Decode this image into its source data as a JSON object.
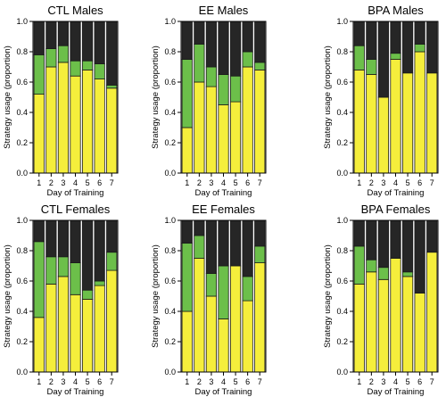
{
  "colors": {
    "yellow": "#f5ee3c",
    "green": "#6cbf4a",
    "black": "#262626"
  },
  "chart_data": [
    {
      "type": "bar",
      "stacked": true,
      "title": "CTL Males",
      "xlabel": "Day of Training",
      "ylabel": "Strategy usage (proportion)",
      "categories": [
        "1",
        "2",
        "3",
        "4",
        "5",
        "6",
        "7"
      ],
      "yticks": [
        "0.0",
        "0.2",
        "0.4",
        "0.6",
        "0.8",
        "1.0"
      ],
      "ylim": [
        0,
        1
      ],
      "series": [
        {
          "color": "yellow",
          "values": [
            0.52,
            0.7,
            0.73,
            0.64,
            0.68,
            0.62,
            0.56
          ]
        },
        {
          "color": "green",
          "values": [
            0.26,
            0.12,
            0.11,
            0.1,
            0.06,
            0.1,
            0.02
          ]
        },
        {
          "color": "black",
          "values": [
            0.22,
            0.18,
            0.16,
            0.26,
            0.26,
            0.28,
            0.42
          ]
        }
      ]
    },
    {
      "type": "bar",
      "stacked": true,
      "title": "EE Males",
      "xlabel": "Day of Training",
      "ylabel": "Strategy usage (proportion)",
      "categories": [
        "1",
        "2",
        "3",
        "4",
        "5",
        "6",
        "7"
      ],
      "yticks": [
        "0.0",
        "0.2",
        "0.4",
        "0.6",
        "0.8",
        "1.0"
      ],
      "ylim": [
        0,
        1
      ],
      "series": [
        {
          "color": "yellow",
          "values": [
            0.3,
            0.6,
            0.57,
            0.45,
            0.47,
            0.7,
            0.68
          ]
        },
        {
          "color": "green",
          "values": [
            0.45,
            0.25,
            0.13,
            0.2,
            0.17,
            0.1,
            0.05
          ]
        },
        {
          "color": "black",
          "values": [
            0.25,
            0.15,
            0.3,
            0.35,
            0.36,
            0.2,
            0.27
          ]
        }
      ]
    },
    {
      "type": "bar",
      "stacked": true,
      "title": "BPA Males",
      "xlabel": "Day of Training",
      "ylabel": "Strategy usage (proportion)",
      "categories": [
        "1",
        "2",
        "3",
        "4",
        "5",
        "6",
        "7"
      ],
      "yticks": [
        "0.0",
        "0.2",
        "0.4",
        "0.6",
        "0.8",
        "1.0"
      ],
      "ylim": [
        0,
        1
      ],
      "series": [
        {
          "color": "yellow",
          "values": [
            0.68,
            0.65,
            0.5,
            0.75,
            0.66,
            0.8,
            0.66
          ]
        },
        {
          "color": "green",
          "values": [
            0.16,
            0.1,
            0.0,
            0.04,
            0.0,
            0.05,
            0.0
          ]
        },
        {
          "color": "black",
          "values": [
            0.16,
            0.25,
            0.5,
            0.21,
            0.34,
            0.15,
            0.34
          ]
        }
      ]
    },
    {
      "type": "bar",
      "stacked": true,
      "title": "CTL Females",
      "xlabel": "Day of Training",
      "ylabel": "Strategy usage (proportion)",
      "categories": [
        "1",
        "2",
        "3",
        "4",
        "5",
        "6",
        "7"
      ],
      "yticks": [
        "0.0",
        "0.2",
        "0.4",
        "0.6",
        "0.8",
        "1.0"
      ],
      "ylim": [
        0,
        1
      ],
      "series": [
        {
          "color": "yellow",
          "values": [
            0.36,
            0.58,
            0.63,
            0.51,
            0.48,
            0.57,
            0.67
          ]
        },
        {
          "color": "green",
          "values": [
            0.5,
            0.18,
            0.13,
            0.21,
            0.06,
            0.03,
            0.12
          ]
        },
        {
          "color": "black",
          "values": [
            0.14,
            0.24,
            0.24,
            0.28,
            0.46,
            0.4,
            0.21
          ]
        }
      ]
    },
    {
      "type": "bar",
      "stacked": true,
      "title": "EE Females",
      "xlabel": "Day of Training",
      "ylabel": "Strategy usage (proportion)",
      "categories": [
        "1",
        "2",
        "3",
        "4",
        "5",
        "6",
        "7"
      ],
      "yticks": [
        "0.0",
        "0.2",
        "0.4",
        "0.6",
        "0.8",
        "1.0"
      ],
      "ylim": [
        0,
        1
      ],
      "series": [
        {
          "color": "yellow",
          "values": [
            0.4,
            0.75,
            0.5,
            0.35,
            0.7,
            0.47,
            0.72
          ]
        },
        {
          "color": "green",
          "values": [
            0.45,
            0.15,
            0.15,
            0.35,
            0.0,
            0.16,
            0.11
          ]
        },
        {
          "color": "black",
          "values": [
            0.15,
            0.1,
            0.35,
            0.3,
            0.3,
            0.37,
            0.17
          ]
        }
      ]
    },
    {
      "type": "bar",
      "stacked": true,
      "title": "BPA Females",
      "xlabel": "Day of Training",
      "ylabel": "Strategy usage (proportion)",
      "categories": [
        "1",
        "2",
        "3",
        "4",
        "5",
        "6",
        "7"
      ],
      "yticks": [
        "0.0",
        "0.2",
        "0.4",
        "0.6",
        "0.8",
        "1.0"
      ],
      "ylim": [
        0,
        1
      ],
      "series": [
        {
          "color": "yellow",
          "values": [
            0.58,
            0.66,
            0.61,
            0.75,
            0.63,
            0.52,
            0.79
          ]
        },
        {
          "color": "green",
          "values": [
            0.25,
            0.08,
            0.08,
            0.0,
            0.03,
            0.0,
            0.0
          ]
        },
        {
          "color": "black",
          "values": [
            0.17,
            0.26,
            0.31,
            0.25,
            0.34,
            0.48,
            0.21
          ]
        }
      ]
    }
  ]
}
